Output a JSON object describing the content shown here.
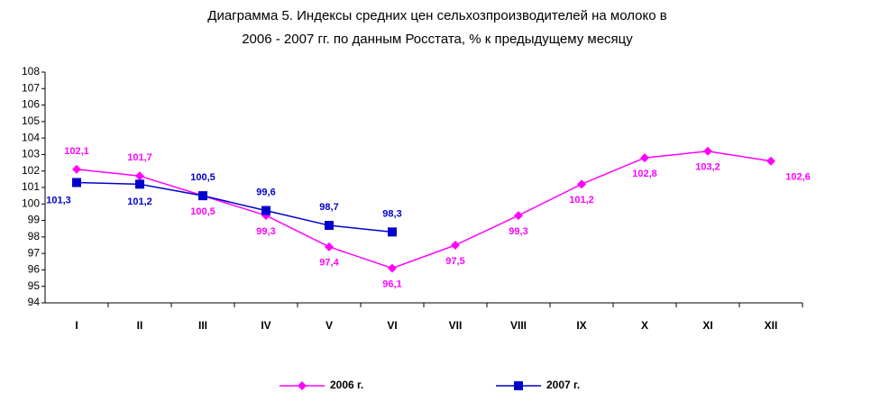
{
  "chart_data": {
    "type": "line",
    "title": "Диаграмма 5. Индексы средних цен сельхозпроизводителей на молоко в 2006 - 2007 гг. по данным Росстата, % к предыдущему месяцу",
    "categories": [
      "I",
      "II",
      "III",
      "IV",
      "V",
      "VI",
      "VII",
      "VIII",
      "IX",
      "X",
      "XI",
      "XII"
    ],
    "series": [
      {
        "name": "2006 г.",
        "color": "#ff00ff",
        "marker": "diamond",
        "values": [
          102.1,
          101.7,
          100.5,
          99.3,
          97.4,
          96.1,
          97.5,
          99.3,
          101.2,
          102.8,
          103.2,
          102.6
        ],
        "value_labels": [
          "102,1",
          "101,7",
          "100,5",
          "99,3",
          "97,4",
          "96,1",
          "97,5",
          "99,3",
          "101,2",
          "102,8",
          "103,2",
          "102,6"
        ]
      },
      {
        "name": "2007 г.",
        "color": "#0000cc",
        "marker": "square",
        "values": [
          101.3,
          101.2,
          100.5,
          99.6,
          98.7,
          98.3,
          null,
          null,
          null,
          null,
          null,
          null
        ],
        "value_labels": [
          "101,3",
          "101,2",
          "100,5",
          "99,6",
          "98,7",
          "98,3",
          null,
          null,
          null,
          null,
          null,
          null
        ]
      }
    ],
    "ylim": [
      94,
      108
    ],
    "yticks": [
      94,
      95,
      96,
      97,
      98,
      99,
      100,
      101,
      102,
      103,
      104,
      105,
      106,
      107,
      108
    ],
    "legend": "bottom"
  }
}
